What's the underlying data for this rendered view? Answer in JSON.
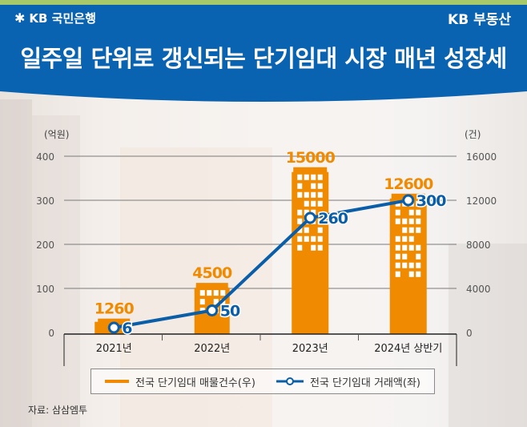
{
  "header": {
    "bank_logo_text": "KB 국민은행",
    "brand_text": "KB 부동산",
    "title": "일주일 단위로 갱신되는 단기임대 시장 매년 성장세",
    "colors": {
      "header_bg": "#0a63b0",
      "top_stripe": "#a7c96a"
    }
  },
  "chart_data": {
    "type": "bar",
    "title": "일주일 단위로 갱신되는 단기임대 시장 매년 성장세",
    "categories": [
      "2021년",
      "2022년",
      "2023년",
      "2024년 상반기"
    ],
    "y_left": {
      "unit_label": "(억원)",
      "ticks": [
        "0",
        "100",
        "200",
        "300",
        "400"
      ],
      "range": [
        0,
        400
      ]
    },
    "y_right": {
      "unit_label": "(건)",
      "ticks": [
        "0",
        "4000",
        "8000",
        "12000",
        "16000"
      ],
      "range": [
        0,
        16000
      ]
    },
    "grid": true,
    "series": [
      {
        "name": "전국 단기임대 매물건수(우)",
        "type": "bar",
        "axis": "right",
        "color": "#f08a00",
        "values": [
          1260,
          4500,
          15000,
          12600
        ],
        "labels": [
          "1260",
          "4500",
          "15000",
          "12600"
        ]
      },
      {
        "name": "전국 단기임대 거래액(좌)",
        "type": "line",
        "axis": "left",
        "color": "#0a5ea8",
        "values": [
          6,
          50,
          260,
          300
        ],
        "labels": [
          "6",
          "50",
          "260",
          "300"
        ]
      }
    ],
    "legend_position": "bottom"
  },
  "legend": {
    "bar_label": "전국 단기임대 매물건수(우)",
    "line_label": "전국 단기임대 거래액(좌)"
  },
  "source": "자료: 삼삼엠투"
}
